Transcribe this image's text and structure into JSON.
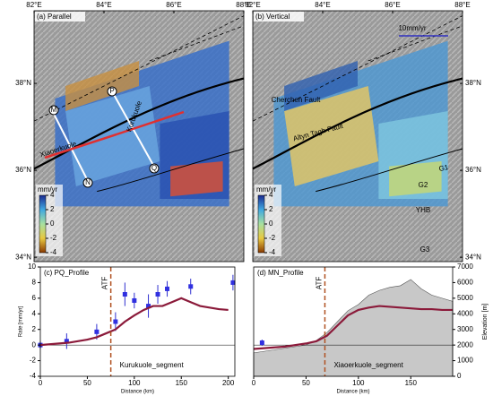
{
  "maps": [
    {
      "title": "(a) Parallel",
      "xlim": [
        82,
        88
      ],
      "ylim": [
        33.9,
        39.67
      ],
      "lon_ticks": [
        {
          "value": 82,
          "label": "82°E"
        },
        {
          "value": 84,
          "label": "84°E"
        },
        {
          "value": 86,
          "label": "86°E"
        },
        {
          "value": 88,
          "label": "88°E"
        }
      ],
      "lat_ticks": [
        {
          "value": 34,
          "label": "34°N"
        },
        {
          "value": 36,
          "label": "36°N"
        },
        {
          "value": 38,
          "label": "38°N"
        }
      ],
      "labels": [
        "M",
        "P",
        "N",
        "Q",
        "Kurukuole",
        "Xiaoerkuole"
      ],
      "colorbar": {
        "unit": "mm/yr",
        "lim": [
          -4,
          4
        ],
        "ticks": [
          -4,
          -2,
          0,
          2,
          4
        ]
      }
    },
    {
      "title": "(b) Vertical",
      "xlim": [
        82,
        88
      ],
      "ylim": [
        33.9,
        39.67
      ],
      "lon_ticks": [
        {
          "value": 82,
          "label": "82°E"
        },
        {
          "value": 84,
          "label": "84°E"
        },
        {
          "value": 86,
          "label": "86°E"
        },
        {
          "value": 88,
          "label": "88°E"
        }
      ],
      "lat_ticks": [
        {
          "value": 34,
          "label": "34°N"
        },
        {
          "value": 36,
          "label": "36°N"
        },
        {
          "value": 38,
          "label": "38°N"
        }
      ],
      "labels": [
        "10mm/yr",
        "Cherchen Fault",
        "Altyn Tagh Fault",
        "G1",
        "G2",
        "YHB",
        "G3"
      ],
      "colorbar": {
        "unit": "mm/yr",
        "lim": [
          -4,
          4
        ],
        "ticks": [
          -4,
          -2,
          0,
          2,
          4
        ]
      }
    }
  ],
  "profiles": [
    {
      "title": "(c) PQ_Profile",
      "fault": "ATF",
      "fault_x": 75,
      "segment": "Kurukuole_segment",
      "xlabel": "Distance (km)",
      "ylabel": "Rate [mm/yr]",
      "xlim": [
        0,
        207
      ],
      "xticks": [
        0,
        50,
        100,
        150,
        200
      ],
      "ylim": [
        -4,
        10
      ],
      "yticks": [
        -4,
        -2,
        0,
        2,
        4,
        6,
        8,
        10
      ],
      "x": [
        0,
        10,
        20,
        30,
        40,
        50,
        60,
        70,
        80,
        90,
        100,
        110,
        120,
        130,
        140,
        150,
        160,
        170,
        180,
        190,
        200
      ],
      "values": [
        0,
        0.1,
        0.2,
        0.3,
        0.5,
        0.7,
        1.0,
        1.5,
        2.0,
        3.0,
        3.8,
        4.5,
        5.0,
        5.0,
        5.5,
        6.0,
        5.5,
        5.0,
        4.8,
        4.6,
        4.5
      ],
      "gps_x": [
        0,
        28,
        60,
        80,
        90,
        100,
        115,
        125,
        135,
        160,
        205
      ],
      "gps": [
        0,
        0.5,
        1.7,
        3,
        6.5,
        5.7,
        5,
        6.5,
        7.2,
        7.5,
        8
      ],
      "gps_err": [
        0.5,
        1,
        1,
        1.2,
        1.5,
        1,
        1.5,
        1.2,
        1,
        1,
        1
      ]
    },
    {
      "title": "(d) MN_Profile",
      "fault": "ATF",
      "fault_x": 68,
      "segment": "Xiaoerkuole_segment",
      "xlabel": "Distance (km)",
      "y2label": "Elevation [m]",
      "xlim": [
        0,
        190
      ],
      "xticks": [
        0,
        50,
        100,
        150
      ],
      "ylim": [
        -4,
        10
      ],
      "y2lim": [
        0,
        7000
      ],
      "y2ticks": [
        0,
        1000,
        2000,
        3000,
        4000,
        5000,
        6000,
        7000
      ],
      "x": [
        0,
        10,
        20,
        30,
        40,
        50,
        60,
        70,
        80,
        90,
        100,
        110,
        120,
        130,
        140,
        150,
        160,
        170,
        180,
        190
      ],
      "values": [
        -0.5,
        -0.4,
        -0.3,
        -0.2,
        0,
        0.2,
        0.5,
        1.2,
        2.5,
        3.8,
        4.5,
        4.8,
        5.0,
        4.9,
        4.8,
        4.7,
        4.6,
        4.6,
        4.5,
        4.5
      ],
      "elevation": [
        1500,
        1600,
        1700,
        1800,
        1900,
        2000,
        2300,
        2800,
        3500,
        4200,
        4600,
        5200,
        5500,
        5700,
        5800,
        6200,
        5600,
        5200,
        5000,
        4800
      ],
      "gps_x": [
        8
      ],
      "gps": [
        0.3
      ],
      "gps_err": [
        0.4
      ]
    }
  ]
}
